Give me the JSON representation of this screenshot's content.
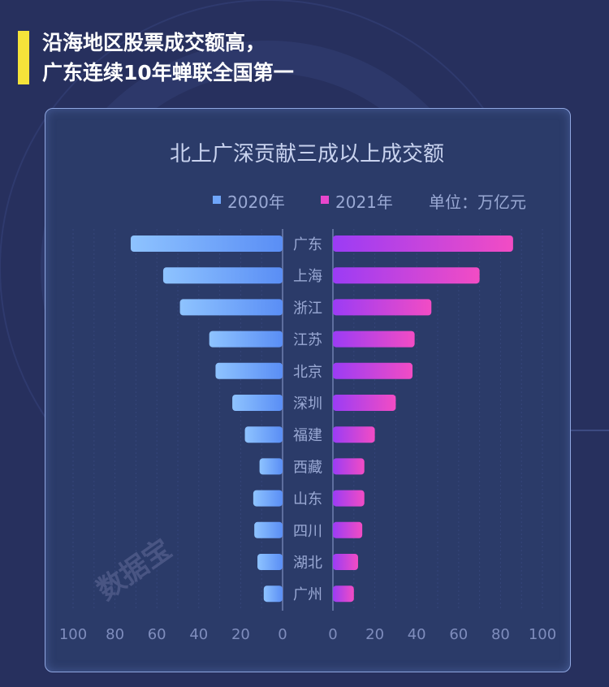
{
  "headline": {
    "line1": "沿海地区股票成交额高，",
    "line2": "广东连续10年蝉联全国第一"
  },
  "watermark": "数据宝",
  "colors": {
    "accent_bar": "#f5e33a",
    "series_2020_start": "#8ec3ff",
    "series_2020_end": "#5a8ef5",
    "series_2021_start": "#9b3cf5",
    "series_2021_end": "#f24cc4",
    "background": "#27305e",
    "panel": "#2b3b69"
  },
  "chart_data": {
    "type": "bar",
    "orientation": "horizontal-butterfly",
    "title": "北上广深贡献三成以上成交额",
    "unit_label": "单位：万亿元",
    "legend_position": "top-right",
    "categories": [
      "广东",
      "上海",
      "浙江",
      "江苏",
      "北京",
      "深圳",
      "福建",
      "西藏",
      "山东",
      "四川",
      "湖北",
      "广州"
    ],
    "series": [
      {
        "name": "2020年",
        "side": "left",
        "values": [
          72.5,
          57,
          49,
          35,
          32,
          24,
          18,
          11,
          14,
          13.5,
          12,
          9
        ]
      },
      {
        "name": "2021年",
        "side": "right",
        "values": [
          86,
          70,
          47,
          39,
          38,
          30,
          20,
          15,
          15,
          14,
          12,
          10
        ]
      }
    ],
    "xlim": [
      0,
      100
    ],
    "xticks": [
      "100",
      "80",
      "60",
      "40",
      "20",
      "0"
    ],
    "xticks_right": [
      "0",
      "20",
      "40",
      "60",
      "80",
      "100"
    ],
    "grid": true
  }
}
